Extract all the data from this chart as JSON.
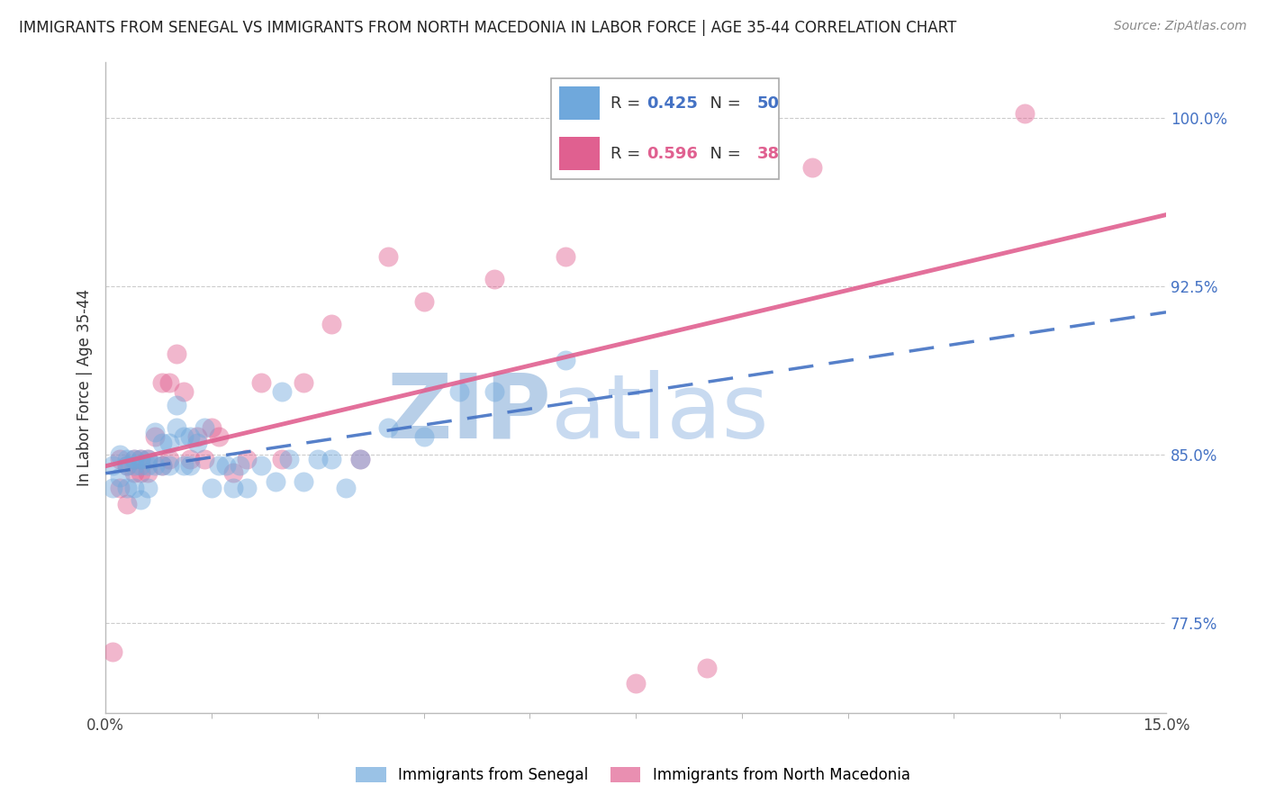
{
  "title": "IMMIGRANTS FROM SENEGAL VS IMMIGRANTS FROM NORTH MACEDONIA IN LABOR FORCE | AGE 35-44 CORRELATION CHART",
  "source": "Source: ZipAtlas.com",
  "ylabel": "In Labor Force | Age 35-44",
  "ylabel_ticks": [
    "77.5%",
    "85.0%",
    "92.5%",
    "100.0%"
  ],
  "ylabel_tick_vals": [
    0.775,
    0.85,
    0.925,
    1.0
  ],
  "xlim": [
    0.0,
    0.15
  ],
  "ylim": [
    0.735,
    1.025
  ],
  "senegal_R": 0.425,
  "senegal_N": 50,
  "nmacedonia_R": 0.596,
  "nmacedonia_N": 38,
  "senegal_color": "#6fa8dc",
  "nmacedonia_color": "#e06090",
  "senegal_line_color": "#4472c4",
  "nmacedonia_line_color": "#e06090",
  "watermark_zip": "ZIP",
  "watermark_atlas": "atlas",
  "watermark_color_zip": "#b8cfe8",
  "watermark_color_atlas": "#c8daf0",
  "senegal_x": [
    0.001,
    0.001,
    0.002,
    0.002,
    0.003,
    0.003,
    0.003,
    0.004,
    0.004,
    0.004,
    0.005,
    0.005,
    0.005,
    0.006,
    0.006,
    0.006,
    0.007,
    0.007,
    0.008,
    0.008,
    0.009,
    0.009,
    0.01,
    0.01,
    0.011,
    0.011,
    0.012,
    0.012,
    0.013,
    0.014,
    0.015,
    0.016,
    0.017,
    0.018,
    0.019,
    0.02,
    0.022,
    0.024,
    0.025,
    0.026,
    0.028,
    0.03,
    0.032,
    0.034,
    0.036,
    0.04,
    0.045,
    0.05,
    0.055,
    0.065
  ],
  "senegal_y": [
    0.845,
    0.835,
    0.85,
    0.84,
    0.845,
    0.835,
    0.848,
    0.845,
    0.848,
    0.835,
    0.845,
    0.848,
    0.83,
    0.848,
    0.845,
    0.835,
    0.86,
    0.845,
    0.845,
    0.855,
    0.855,
    0.845,
    0.862,
    0.872,
    0.845,
    0.858,
    0.858,
    0.845,
    0.855,
    0.862,
    0.835,
    0.845,
    0.845,
    0.835,
    0.845,
    0.835,
    0.845,
    0.838,
    0.878,
    0.848,
    0.838,
    0.848,
    0.848,
    0.835,
    0.848,
    0.862,
    0.858,
    0.878,
    0.878,
    0.892
  ],
  "nmacedonia_x": [
    0.001,
    0.002,
    0.002,
    0.003,
    0.003,
    0.004,
    0.004,
    0.005,
    0.005,
    0.006,
    0.006,
    0.007,
    0.008,
    0.008,
    0.009,
    0.009,
    0.01,
    0.011,
    0.012,
    0.013,
    0.014,
    0.015,
    0.016,
    0.018,
    0.02,
    0.022,
    0.025,
    0.028,
    0.032,
    0.036,
    0.04,
    0.045,
    0.055,
    0.065,
    0.075,
    0.085,
    0.1,
    0.13
  ],
  "nmacedonia_y": [
    0.762,
    0.848,
    0.835,
    0.845,
    0.828,
    0.848,
    0.842,
    0.848,
    0.842,
    0.842,
    0.848,
    0.858,
    0.845,
    0.882,
    0.848,
    0.882,
    0.895,
    0.878,
    0.848,
    0.858,
    0.848,
    0.862,
    0.858,
    0.842,
    0.848,
    0.882,
    0.848,
    0.882,
    0.908,
    0.848,
    0.938,
    0.918,
    0.928,
    0.938,
    0.748,
    0.755,
    0.978,
    1.002
  ],
  "hgrid_vals": [
    0.775,
    0.85,
    0.925,
    1.0
  ],
  "leg_senegal_label": "R = 0.425   N = 50",
  "leg_nmacedonia_label": "R = 0.596   N = 38",
  "bottom_legend_senegal": "Immigrants from Senegal",
  "bottom_legend_nmacedonia": "Immigrants from North Macedonia"
}
